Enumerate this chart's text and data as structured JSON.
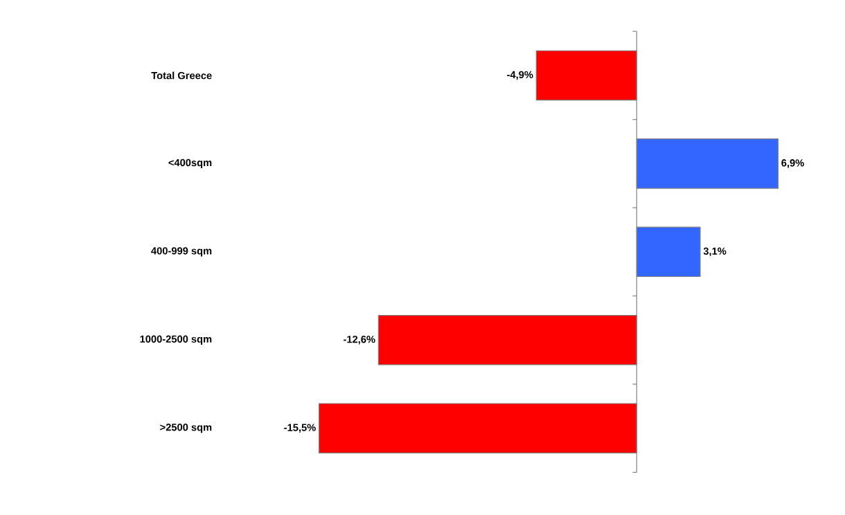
{
  "chart_data": {
    "type": "bar",
    "orientation": "horizontal",
    "categories": [
      "Total Greece",
      "<400sqm",
      "400-999 sqm",
      "1000-2500 sqm",
      ">2500 sqm"
    ],
    "values": [
      -4.9,
      6.9,
      3.1,
      -12.6,
      -15.5
    ],
    "colors": [
      "#ff0000",
      "#3366ff",
      "#3366ff",
      "#ff0000",
      "#ff0000"
    ],
    "value_labels": [
      "-4,9%",
      "6,9%",
      "3,1%",
      "-12,6%",
      "-15,5%"
    ]
  }
}
